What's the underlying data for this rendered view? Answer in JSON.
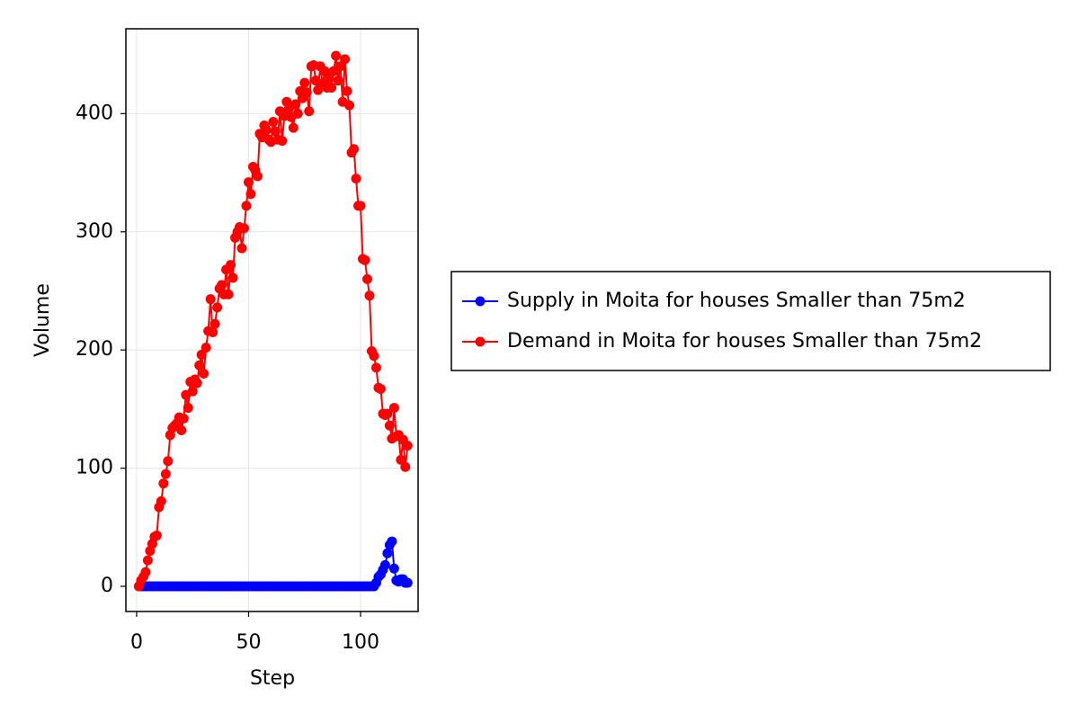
{
  "chart_data": {
    "type": "line",
    "x_label": "Step",
    "y_label": "Volume",
    "x": [
      1,
      2,
      3,
      4,
      5,
      6,
      7,
      8,
      9,
      10,
      11,
      12,
      13,
      14,
      15,
      16,
      17,
      18,
      19,
      20,
      21,
      22,
      23,
      24,
      25,
      26,
      27,
      28,
      29,
      30,
      31,
      32,
      33,
      34,
      35,
      36,
      37,
      38,
      39,
      40,
      41,
      42,
      43,
      44,
      45,
      46,
      47,
      48,
      49,
      50,
      51,
      52,
      53,
      54,
      55,
      56,
      57,
      58,
      59,
      60,
      61,
      62,
      63,
      64,
      65,
      66,
      67,
      68,
      69,
      70,
      71,
      72,
      73,
      74,
      75,
      76,
      77,
      78,
      79,
      80,
      81,
      82,
      83,
      84,
      85,
      86,
      87,
      88,
      89,
      90,
      91,
      92,
      93,
      94,
      95,
      96,
      97,
      98,
      99,
      100,
      101,
      102,
      103,
      104,
      105,
      106,
      107,
      108,
      109,
      110,
      111,
      112,
      113,
      114,
      115,
      116,
      117,
      118,
      119,
      120,
      121
    ],
    "series": [
      {
        "name": "Supply in Moita for houses Smaller than 75m2",
        "color": "#0000ff",
        "values": [
          0,
          0,
          0,
          0,
          0,
          0,
          0,
          0,
          0,
          0,
          0,
          0,
          0,
          0,
          0,
          0,
          0,
          0,
          0,
          0,
          0,
          0,
          0,
          0,
          0,
          0,
          0,
          0,
          0,
          0,
          0,
          0,
          0,
          0,
          0,
          0,
          0,
          0,
          0,
          0,
          0,
          0,
          0,
          0,
          0,
          0,
          0,
          0,
          0,
          0,
          0,
          0,
          0,
          0,
          0,
          0,
          0,
          0,
          0,
          0,
          0,
          0,
          0,
          0,
          0,
          0,
          0,
          0,
          0,
          0,
          0,
          0,
          0,
          0,
          0,
          0,
          0,
          0,
          0,
          0,
          0,
          0,
          0,
          0,
          0,
          0,
          0,
          0,
          0,
          0,
          0,
          0,
          0,
          0,
          0,
          0,
          0,
          0,
          0,
          0,
          0,
          0,
          0,
          0,
          0,
          0,
          3,
          8,
          10,
          14,
          18,
          28,
          35,
          38,
          15,
          5,
          4,
          6,
          6,
          3,
          3
        ]
      },
      {
        "name": "Demand in Moita for houses Smaller than 75m2",
        "color": "#ff0000",
        "values": [
          0,
          5,
          8,
          12,
          22,
          30,
          36,
          42,
          43,
          67,
          72,
          87,
          95,
          106,
          128,
          134,
          136,
          138,
          143,
          132,
          142,
          162,
          151,
          173,
          165,
          175,
          172,
          187,
          196,
          180,
          202,
          216,
          243,
          215,
          222,
          236,
          252,
          255,
          247,
          268,
          247,
          272,
          261,
          295,
          300,
          304,
          286,
          303,
          322,
          342,
          332,
          355,
          352,
          347,
          383,
          380,
          390,
          386,
          378,
          376,
          393,
          385,
          378,
          402,
          377,
          398,
          410,
          404,
          397,
          388,
          408,
          400,
          419,
          413,
          426,
          418,
          402,
          440,
          441,
          428,
          420,
          440,
          425,
          436,
          422,
          430,
          422,
          436,
          449,
          428,
          440,
          410,
          446,
          419,
          407,
          367,
          370,
          345,
          322,
          322,
          277,
          276,
          260,
          246,
          199,
          195,
          185,
          168,
          167,
          146,
          145,
          146,
          136,
          125,
          151,
          127,
          128,
          107,
          124,
          101,
          119
        ]
      }
    ],
    "xlim": [
      -4.8,
      125.7
    ],
    "ylim": [
      -21.3,
      471.8
    ],
    "xticks": [
      0,
      50,
      100
    ],
    "yticks": [
      0,
      100,
      200,
      300,
      400
    ],
    "grid": true,
    "legend": "right"
  }
}
